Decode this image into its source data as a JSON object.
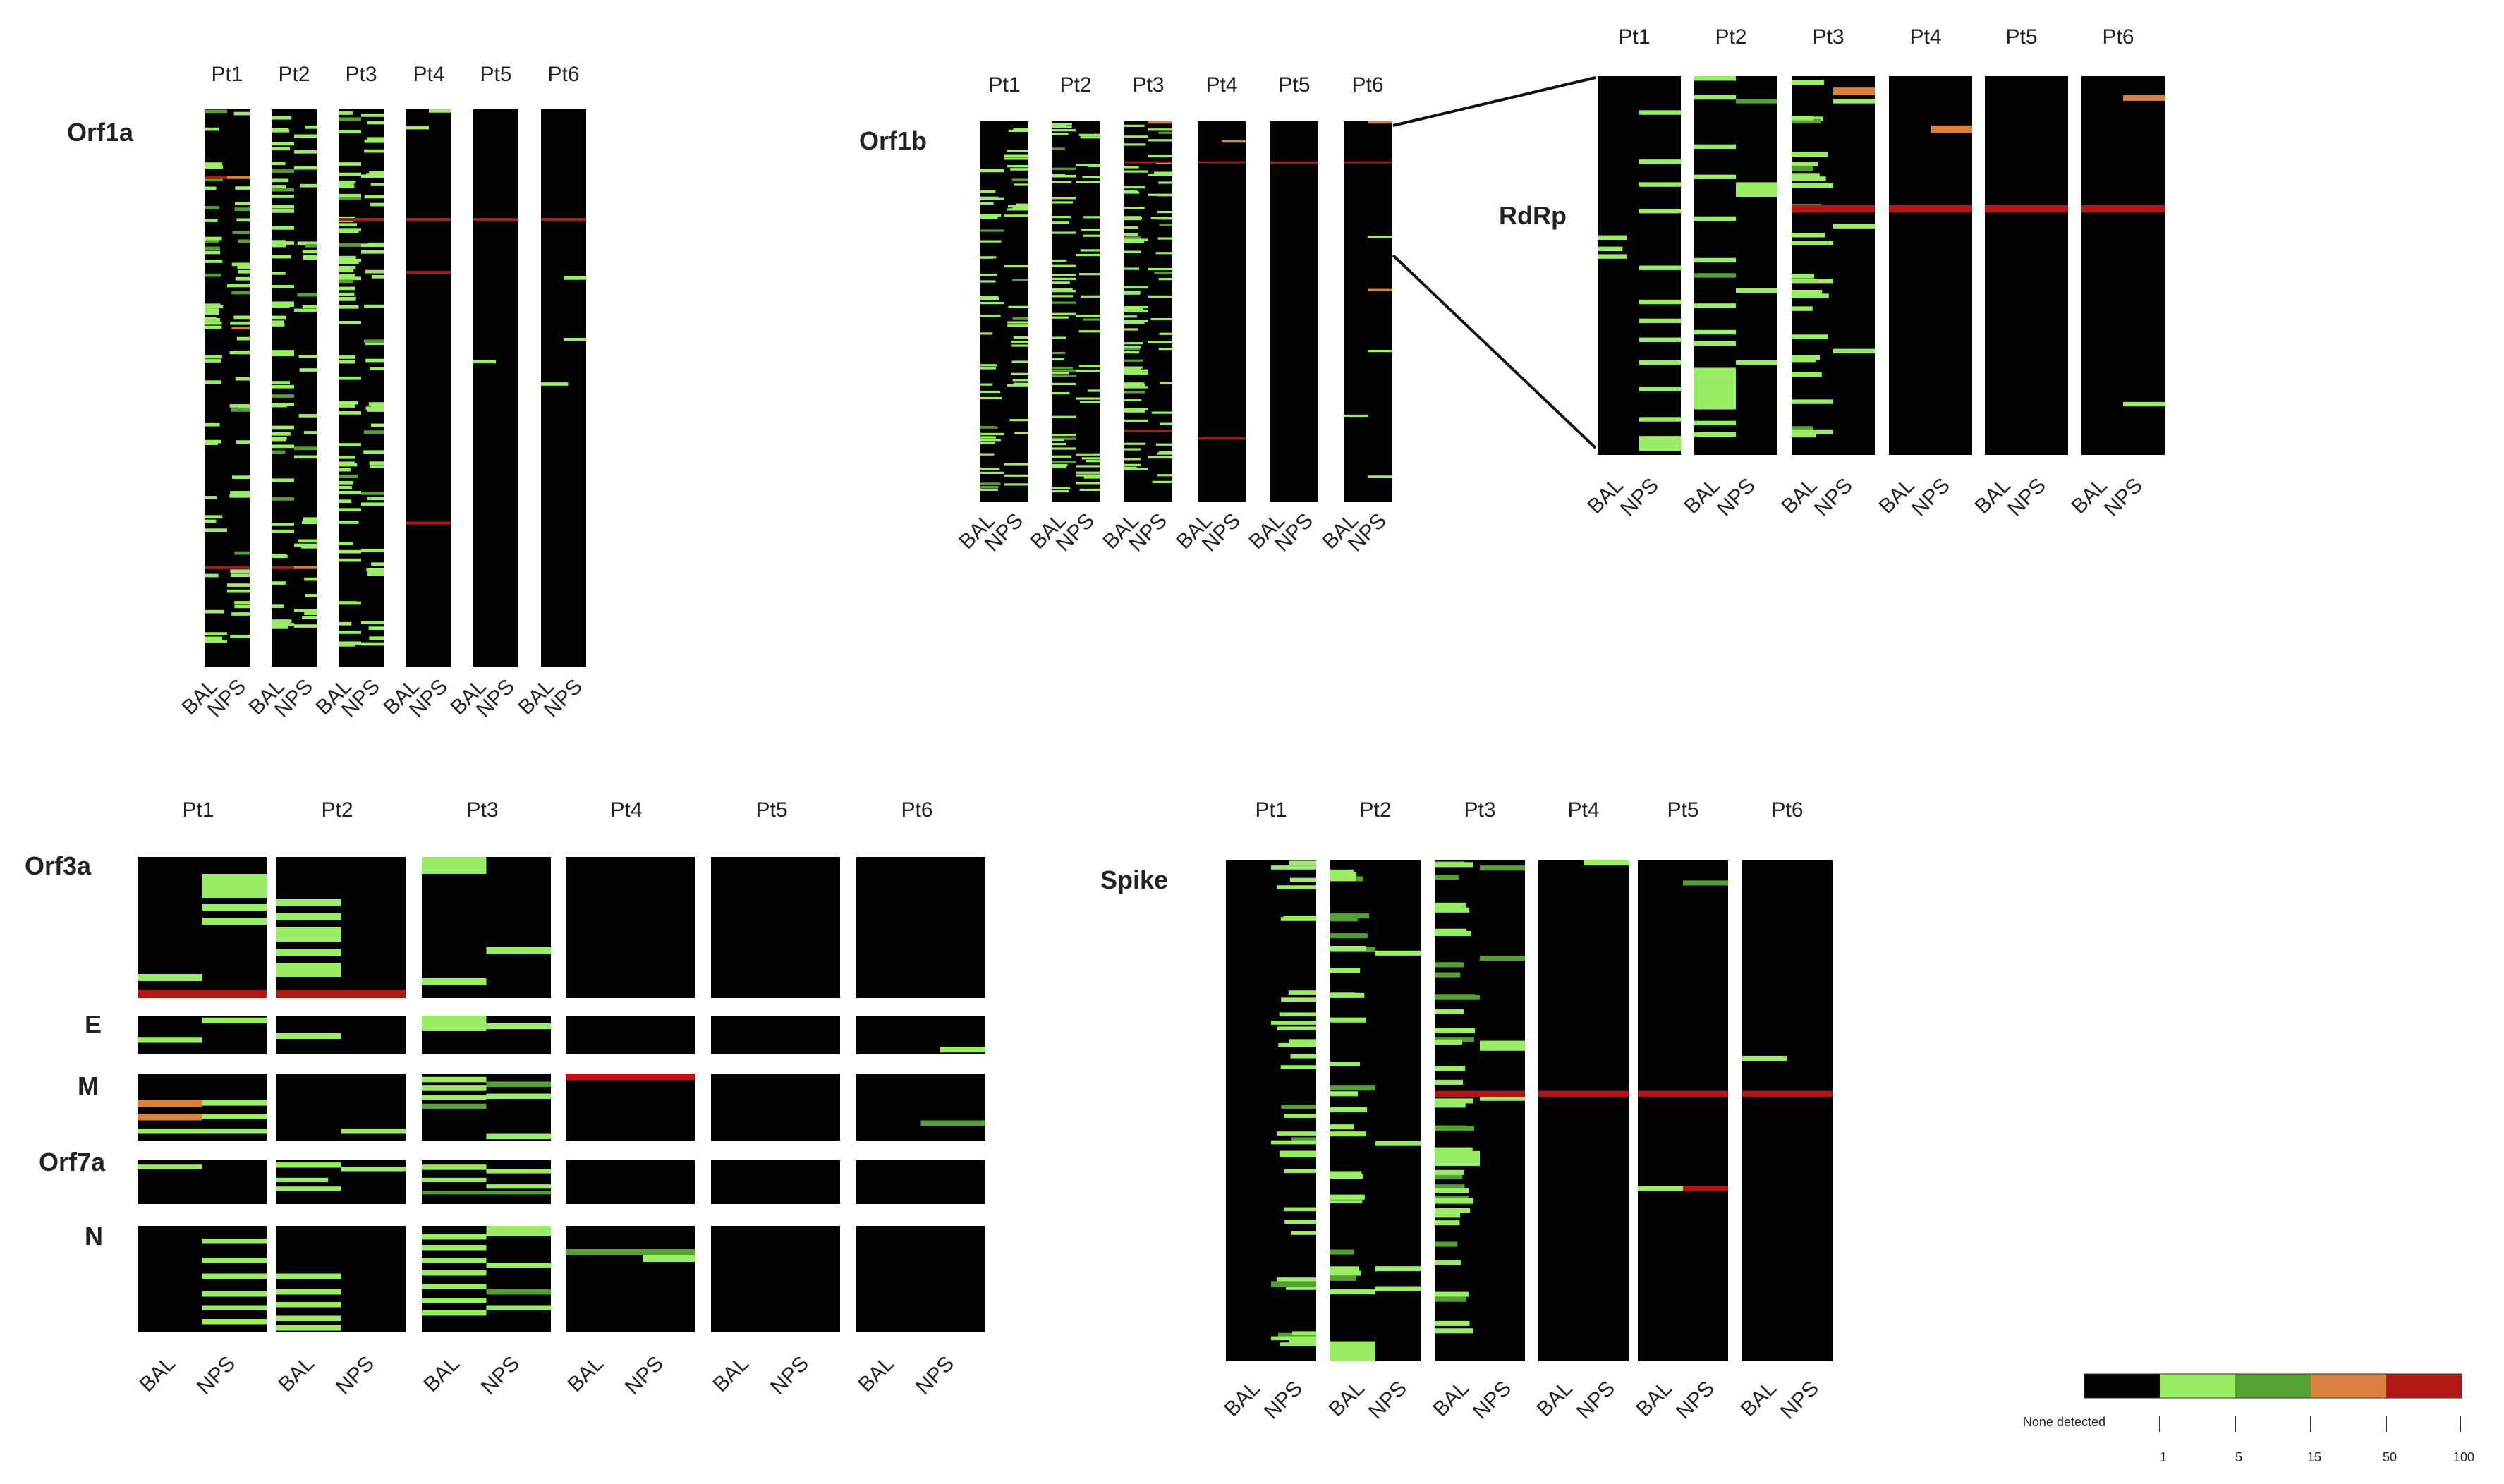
{
  "patients": [
    "Pt1",
    "Pt2",
    "Pt3",
    "Pt4",
    "Pt5",
    "Pt6"
  ],
  "samples": [
    "BAL",
    "NPS"
  ],
  "genes": {
    "orf1a": "Orf1a",
    "orf1b": "Orf1b",
    "rdrp": "RdRp",
    "orf3a": "Orf3a",
    "e": "E",
    "m": "M",
    "orf7a": "Orf7a",
    "n": "N",
    "spike": "Spike"
  },
  "legend": {
    "none_label": "None detected",
    "ticks": [
      "1",
      "5",
      "15",
      "50",
      "100"
    ],
    "colors": {
      "none": "#000000",
      "1-5": "#99ee66",
      "5-15": "#55a032",
      "15-50": "#d9803e",
      "50-100": "#b01818"
    }
  }
}
